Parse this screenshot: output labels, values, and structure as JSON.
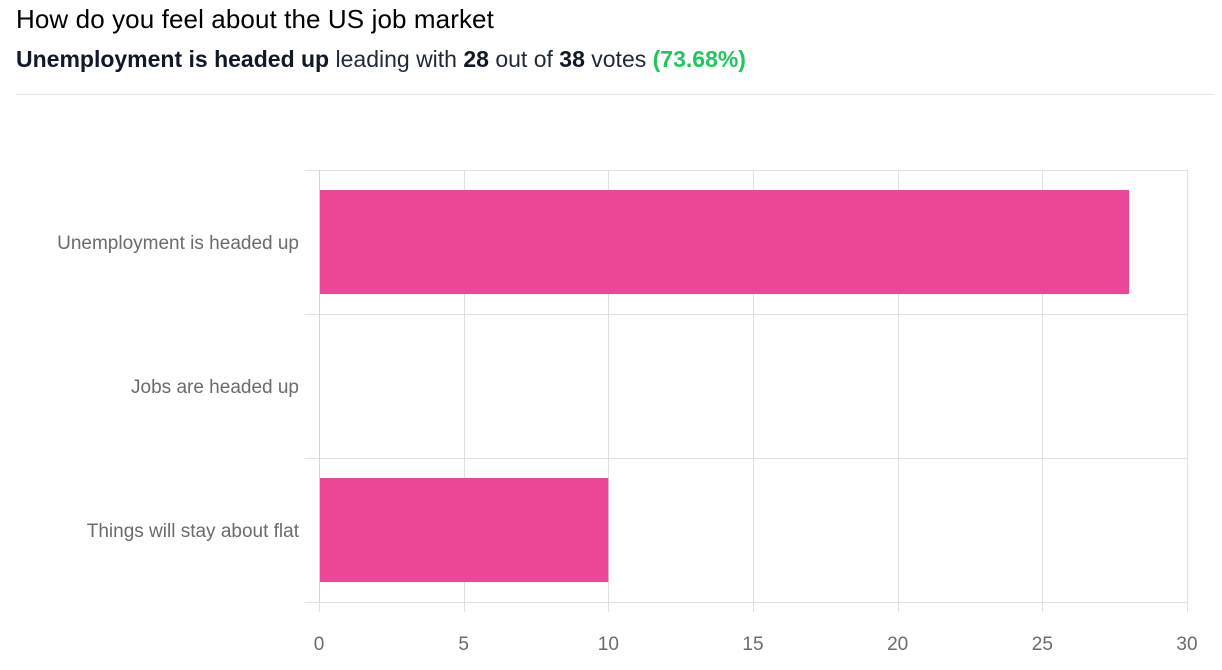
{
  "poll": {
    "title": "How do you feel about the US job market",
    "leader_option": "Unemployment is headed up",
    "text_leading_with": "leading with",
    "leader_votes": "28",
    "text_out_of": "out of",
    "total_votes": "38",
    "text_votes": "votes",
    "leader_percent": "(73.68%)"
  },
  "colors": {
    "bar": "#ec4899",
    "grid": "#e0e0e0",
    "highlight": "#22c55e"
  },
  "chart_data": {
    "type": "bar",
    "orientation": "horizontal",
    "categories": [
      "Unemployment is headed up",
      "Jobs are headed up",
      "Things will stay about flat"
    ],
    "values": [
      28,
      0,
      10
    ],
    "xlim": [
      0,
      30
    ],
    "xticks": [
      0,
      5,
      10,
      15,
      20,
      25,
      30
    ],
    "grid": true,
    "legend": "none"
  }
}
